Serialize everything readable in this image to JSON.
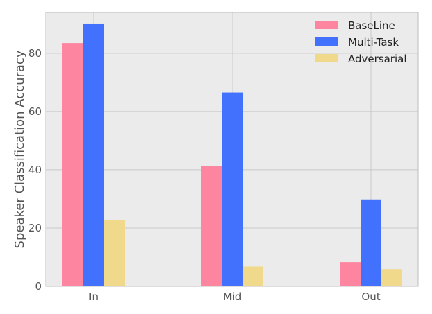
{
  "chart_data": {
    "type": "bar",
    "title": "",
    "xlabel": "",
    "ylabel": "Speaker Classification Accuracy",
    "categories": [
      "In",
      "Mid",
      "Out"
    ],
    "series": [
      {
        "name": "BaseLine",
        "color": "#fe859f",
        "values": [
          83.5,
          41.3,
          8.3
        ]
      },
      {
        "name": "Multi-Task",
        "color": "#4271fd",
        "values": [
          90.2,
          66.5,
          29.8
        ]
      },
      {
        "name": "Adversarial",
        "color": "#f1d98b",
        "values": [
          22.7,
          6.8,
          5.9
        ]
      }
    ],
    "ylim": [
      0,
      94
    ],
    "yticks": [
      0,
      20,
      40,
      60,
      80
    ],
    "grid": true,
    "legend_position": "top-right",
    "colors": {
      "plot_background": "#ebebeb",
      "grid": "#c8c8c8",
      "frame": "#bdbdbd"
    }
  }
}
